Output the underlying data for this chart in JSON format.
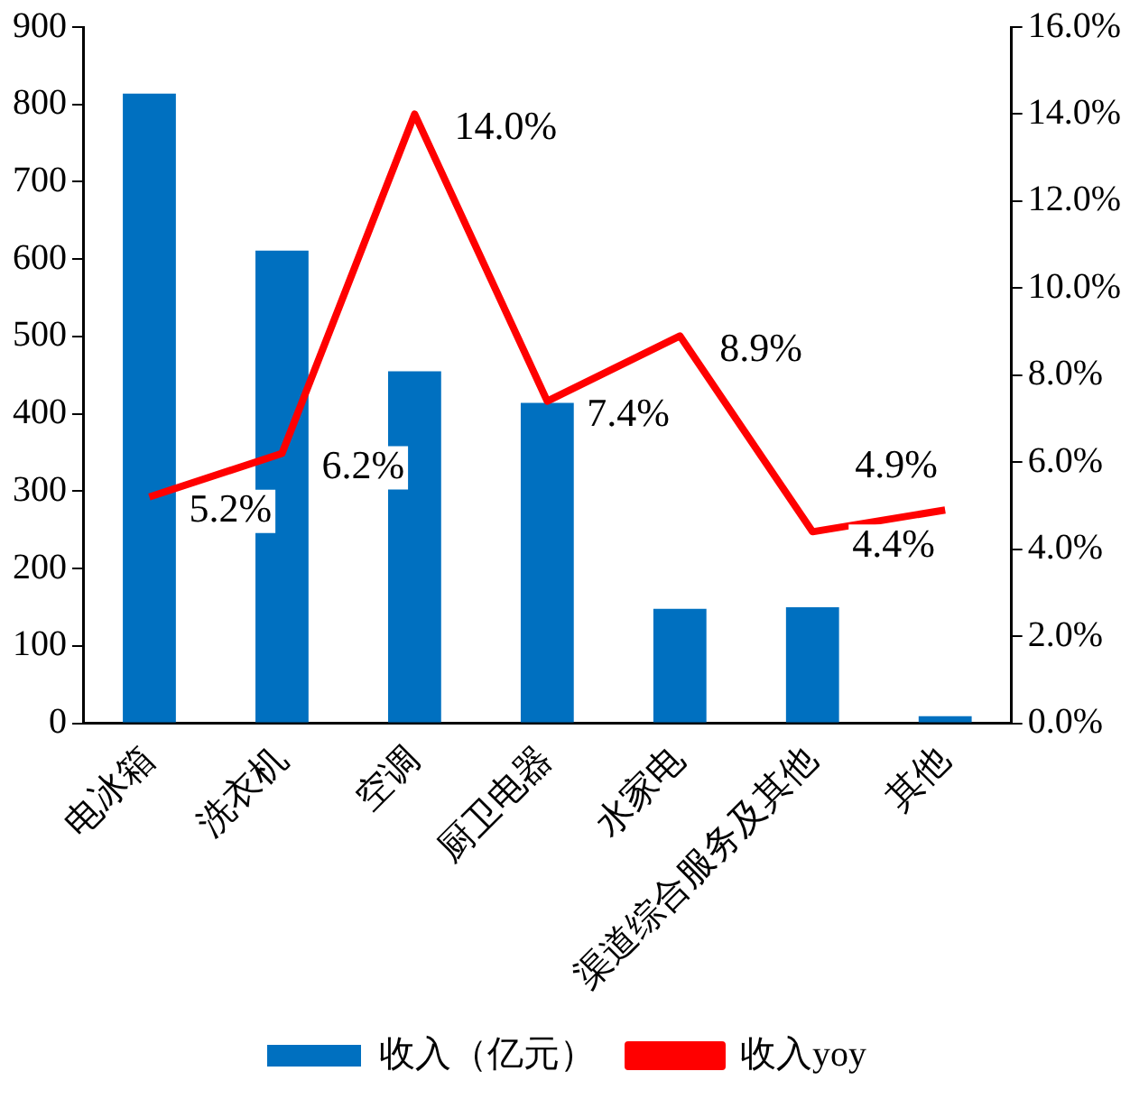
{
  "chart_data": {
    "type": "bar",
    "categories": [
      "电冰箱",
      "洗衣机",
      "空调",
      "厨卫电器",
      "水家电",
      "渠道综合服务及其他",
      "其他"
    ],
    "series": [
      {
        "name": "收入（亿元）",
        "color": "#0070c0",
        "values": [
          814,
          611,
          455,
          414,
          148,
          150,
          9
        ]
      },
      {
        "name": "收入yoy",
        "type": "line",
        "axis": "y2",
        "color": "#ff0000",
        "marker": "none",
        "values": [
          5.2,
          6.2,
          14.0,
          7.4,
          8.9,
          4.4,
          4.9
        ],
        "value_labels": [
          "5.2%",
          "6.2%",
          "14.0%",
          "7.4%",
          "8.9%",
          "4.4%",
          "4.9%"
        ]
      }
    ],
    "ylim": [
      0,
      900
    ],
    "yticks": [
      0,
      100,
      200,
      300,
      400,
      500,
      600,
      700,
      800,
      900
    ],
    "y2lim": [
      0,
      16
    ],
    "y2ticks": [
      {
        "value": 0,
        "label": "0.0%"
      },
      {
        "value": 2,
        "label": "2.0%"
      },
      {
        "value": 4,
        "label": "4.0%"
      },
      {
        "value": 6,
        "label": "6.0%"
      },
      {
        "value": 8,
        "label": "8.0%"
      },
      {
        "value": 10,
        "label": "10.0%"
      },
      {
        "value": 12,
        "label": "12.0%"
      },
      {
        "value": 14,
        "label": "14.0%"
      },
      {
        "value": 16,
        "label": "16.0%"
      }
    ],
    "grid": false,
    "legend": "bottom"
  }
}
